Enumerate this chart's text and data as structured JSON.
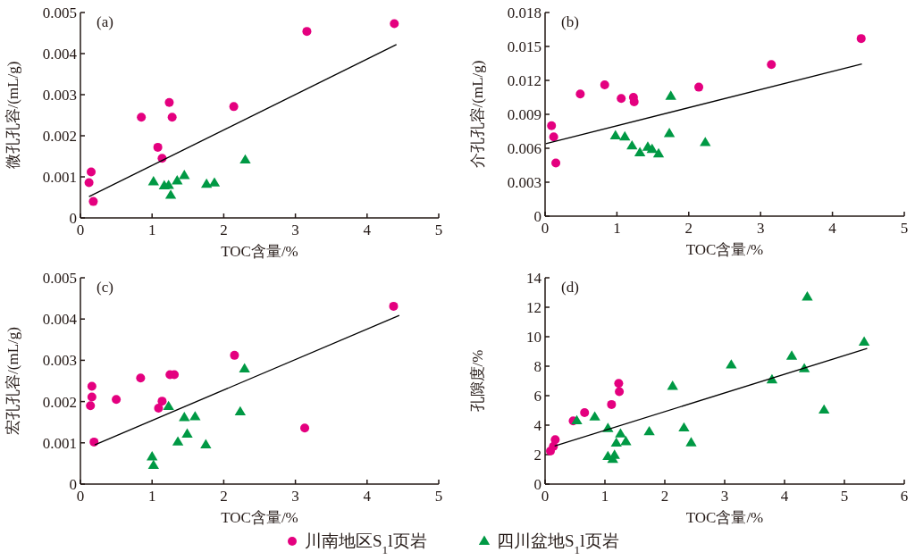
{
  "chart_data": [
    {
      "type": "scatter",
      "ylabel": "微孔孔容/(mL/g)",
      "xlabel": "TOC含量/%",
      "annotations": [
        "(a)"
      ],
      "xlim": [
        0,
        5
      ],
      "xticks": [
        0,
        1,
        2,
        3,
        4,
        5
      ],
      "ylim": [
        0,
        0.005
      ],
      "yticks": [
        0,
        0.001,
        0.002,
        0.003,
        0.004,
        0.005
      ],
      "legend": "bottom",
      "series": [
        {
          "name": "川南地区S$_{1}$l页岩",
          "color": "#e4007f",
          "marker": "circle",
          "x": [
            0.15,
            0.12,
            0.18,
            0.85,
            1.08,
            1.14,
            1.24,
            1.28,
            2.14,
            3.16,
            4.38
          ],
          "values": [
            0.00112,
            0.00086,
            0.0004,
            0.00245,
            0.00172,
            0.00145,
            0.00281,
            0.00245,
            0.00271,
            0.00454,
            0.00473
          ]
        },
        {
          "name": "四川盆地S$_{1}$l页岩",
          "color": "#009944",
          "marker": "triangle",
          "x": [
            1.02,
            1.17,
            1.23,
            1.26,
            1.35,
            1.45,
            1.76,
            1.87,
            2.3
          ],
          "values": [
            0.00088,
            0.00078,
            0.00079,
            0.00055,
            0.0009,
            0.00103,
            0.00082,
            0.00085,
            0.00141
          ]
        },
        {
          "type": "line",
          "color": "#000000",
          "x": [
            0.12,
            4.41
          ],
          "values": [
            0.00052,
            0.00422
          ]
        }
      ]
    },
    {
      "type": "scatter",
      "ylabel": "介孔孔容/(mL/g)",
      "xlabel": "TOC含量/%",
      "annotations": [
        "(b)"
      ],
      "xlim": [
        0,
        5
      ],
      "xticks": [
        0,
        1,
        2,
        3,
        4,
        5
      ],
      "ylim": [
        0,
        0.018
      ],
      "yticks": [
        0,
        0.003,
        0.006,
        0.009,
        0.012,
        0.015,
        0.018
      ],
      "legend": "bottom",
      "series": [
        {
          "name": "川南地区S$_{1}$l页岩",
          "color": "#e4007f",
          "marker": "circle",
          "x": [
            0.09,
            0.12,
            0.15,
            0.49,
            0.83,
            1.06,
            1.23,
            1.24,
            2.14,
            3.15,
            4.4
          ],
          "values": [
            0.008,
            0.007,
            0.0047,
            0.0108,
            0.0116,
            0.0104,
            0.0105,
            0.0101,
            0.0114,
            0.0134,
            0.0157
          ]
        },
        {
          "name": "四川盆地S$_{1}$l页岩",
          "color": "#009944",
          "marker": "triangle",
          "x": [
            0.98,
            1.11,
            1.21,
            1.32,
            1.43,
            1.49,
            1.58,
            1.75,
            1.73,
            2.23
          ],
          "values": [
            0.0071,
            0.007,
            0.0062,
            0.0056,
            0.0061,
            0.0059,
            0.0055,
            0.0106,
            0.0073,
            0.0065
          ]
        },
        {
          "type": "line",
          "color": "#000000",
          "x": [
            0.01,
            4.41
          ],
          "values": [
            0.0064,
            0.01345
          ]
        }
      ]
    },
    {
      "type": "scatter",
      "ylabel": "宏孔孔容/(mL/g)",
      "xlabel": "TOC含量/%",
      "annotations": [
        "(c)"
      ],
      "xlim": [
        0,
        5
      ],
      "xticks": [
        0,
        1,
        2,
        3,
        4,
        5
      ],
      "ylim": [
        0,
        0.005
      ],
      "yticks": [
        0,
        0.001,
        0.002,
        0.003,
        0.004,
        0.005
      ],
      "legend": "bottom",
      "series": [
        {
          "name": "川南地区S$_{1}$l页岩",
          "color": "#e4007f",
          "marker": "circle",
          "x": [
            0.16,
            0.16,
            0.14,
            0.19,
            0.5,
            0.84,
            1.09,
            1.14,
            1.25,
            1.31,
            2.15,
            3.13,
            4.37
          ],
          "values": [
            0.00237,
            0.00211,
            0.0019,
            0.00102,
            0.00205,
            0.00257,
            0.00184,
            0.00201,
            0.00265,
            0.00265,
            0.00312,
            0.00136,
            0.00431
          ]
        },
        {
          "name": "四川盆地S$_{1}$l页岩",
          "color": "#009944",
          "marker": "triangle",
          "x": [
            1.23,
            1.0,
            1.02,
            1.36,
            1.45,
            1.49,
            1.6,
            1.75,
            2.23,
            2.29
          ],
          "values": [
            0.00188,
            0.00066,
            0.00045,
            0.00102,
            0.00161,
            0.00121,
            0.00163,
            0.00095,
            0.00175,
            0.00279
          ]
        },
        {
          "type": "line",
          "color": "#000000",
          "x": [
            0.2,
            4.45
          ],
          "values": [
            0.00095,
            0.00409
          ]
        }
      ]
    },
    {
      "type": "scatter",
      "ylabel": "孔隙度/%",
      "xlabel": "TOC含量/%",
      "annotations": [
        "(d)"
      ],
      "xlim": [
        0,
        6
      ],
      "xticks": [
        0,
        1,
        2,
        3,
        4,
        5,
        6
      ],
      "ylim": [
        0,
        14
      ],
      "yticks": [
        0,
        2,
        4,
        6,
        8,
        10,
        12,
        14
      ],
      "legend": "bottom",
      "series": [
        {
          "name": "川南地区S$_{1}$l页岩",
          "color": "#e4007f",
          "marker": "circle",
          "x": [
            0.09,
            0.14,
            0.17,
            0.47,
            0.66,
            1.11,
            1.23,
            1.24
          ],
          "values": [
            2.24,
            2.56,
            3.02,
            4.29,
            4.85,
            5.4,
            6.83,
            6.27
          ]
        },
        {
          "name": "四川盆地S$_{1}$l页岩",
          "color": "#009944",
          "marker": "triangle",
          "x": [
            0.53,
            0.83,
            1.05,
            1.05,
            1.13,
            1.16,
            1.19,
            1.26,
            1.35,
            1.74,
            2.13,
            2.32,
            2.44,
            3.11,
            3.79,
            4.12,
            4.33,
            4.38,
            4.66,
            5.33
          ],
          "values": [
            4.29,
            4.55,
            3.77,
            1.87,
            1.67,
            1.95,
            2.78,
            3.4,
            2.88,
            3.55,
            6.63,
            3.81,
            2.8,
            8.08,
            7.07,
            8.68,
            7.82,
            12.69,
            5.02,
            9.63
          ]
        },
        {
          "type": "line",
          "color": "#000000",
          "x": [
            0.16,
            5.38
          ],
          "values": [
            2.58,
            9.21
          ]
        }
      ]
    }
  ]
}
